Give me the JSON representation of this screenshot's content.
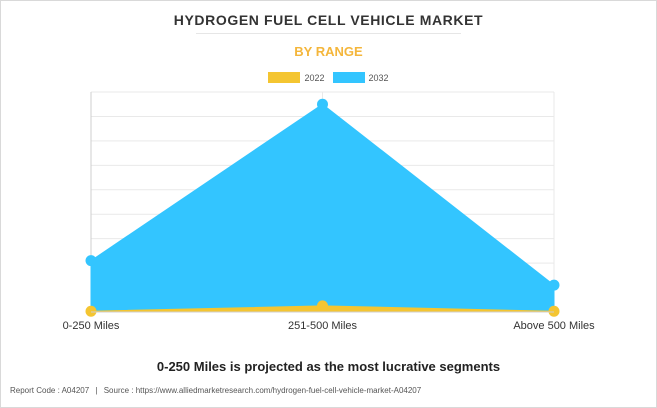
{
  "header": {
    "title": "HYDROGEN FUEL CELL VEHICLE MARKET",
    "subtitle": "BY RANGE"
  },
  "colors": {
    "series_2022": "#f4c531",
    "series_2032": "#33c5ff",
    "subtitle": "#f4b63b"
  },
  "chart_data": {
    "type": "area",
    "categories": [
      "0-250 Miles",
      "251-500 Miles",
      "Above 500 Miles"
    ],
    "series": [
      {
        "name": "2022",
        "values": [
          0.3,
          2.5,
          0.3
        ]
      },
      {
        "name": "2032",
        "values": [
          21,
          85,
          11
        ]
      }
    ],
    "ylim": [
      0,
      90
    ],
    "grid": true,
    "legend_position": "top-center",
    "y_tick_labels_shown": false
  },
  "insight": "0-250 Miles is projected as the most lucrative segments",
  "footer": {
    "report_code": "Report Code : A04207",
    "separator": "|",
    "source": "Source : https://www.alliedmarketresearch.com/hydrogen-fuel-cell-vehicle-market-A04207"
  }
}
